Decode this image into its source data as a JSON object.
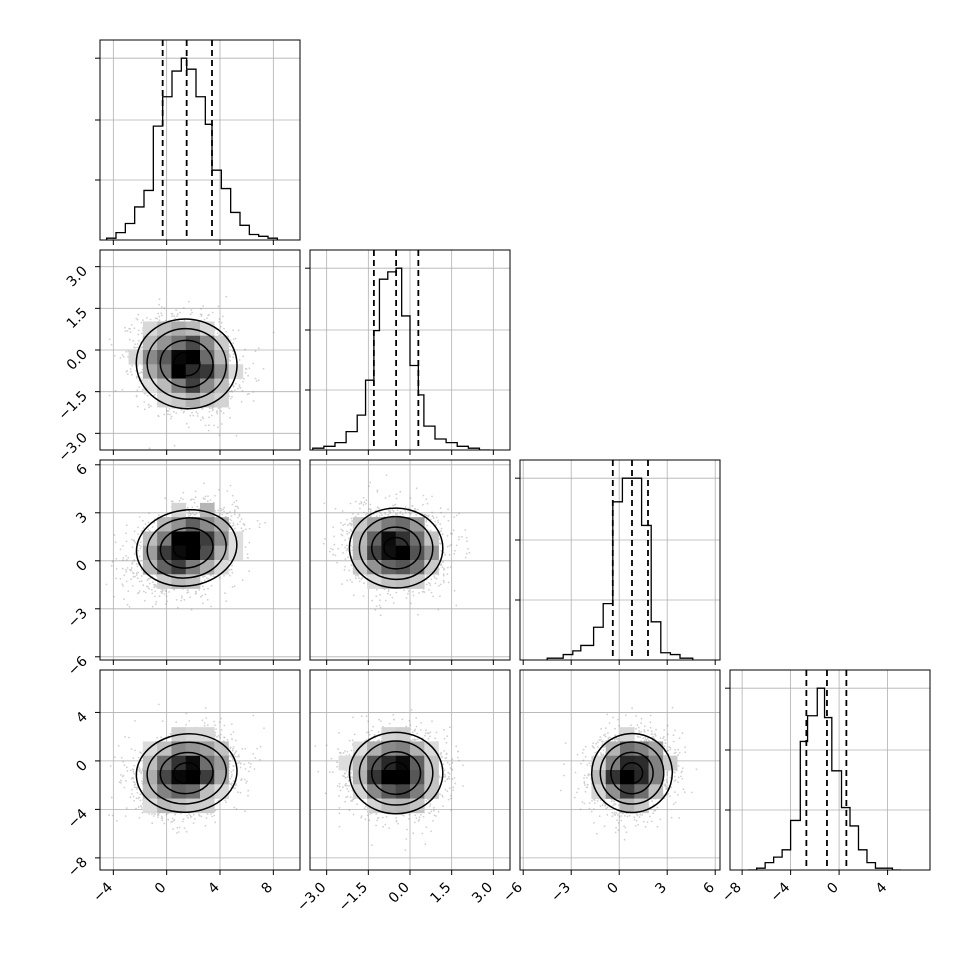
{
  "chart_data": {
    "type": "corner",
    "grid": true,
    "parameters": [
      {
        "index": 0,
        "range": [
          -5,
          10
        ],
        "ticks": [
          -4,
          0,
          4,
          8
        ],
        "tick_labels": [
          "−4",
          "0",
          "4",
          "8"
        ],
        "mean": 1.5,
        "std": 1.8,
        "quantiles": [
          -0.3,
          1.5,
          3.4
        ],
        "hist_bins": [
          -4.5,
          -3.8,
          -3.1,
          -2.4,
          -1.7,
          -1.0,
          -0.3,
          0.4,
          1.1,
          1.5,
          2.2,
          2.9,
          3.4,
          4.1,
          4.8,
          5.5,
          6.2,
          6.9,
          7.6,
          8.3
        ],
        "hist_values": [
          0.01,
          0.04,
          0.09,
          0.18,
          0.27,
          0.62,
          0.78,
          0.92,
          0.99,
          0.93,
          0.78,
          0.63,
          0.38,
          0.28,
          0.15,
          0.08,
          0.03,
          0.02,
          0.01
        ]
      },
      {
        "index": 1,
        "range": [
          -3.6,
          3.6
        ],
        "ticks": [
          -3.0,
          -1.5,
          0.0,
          1.5,
          3.0
        ],
        "tick_labels": [
          "−3.0",
          "−1.5",
          "0.0",
          "1.5",
          "3.0"
        ],
        "mean": -0.5,
        "std": 0.8,
        "quantiles": [
          -1.3,
          -0.5,
          0.3
        ],
        "hist_bins": [
          -3.5,
          -3.1,
          -2.7,
          -2.3,
          -1.9,
          -1.6,
          -1.3,
          -1.1,
          -0.8,
          -0.5,
          -0.3,
          0.0,
          0.3,
          0.5,
          0.9,
          1.3,
          1.7,
          2.1,
          2.5,
          2.9
        ],
        "hist_values": [
          0.01,
          0.02,
          0.04,
          0.1,
          0.19,
          0.38,
          0.65,
          0.93,
          0.97,
          0.99,
          0.73,
          0.46,
          0.3,
          0.13,
          0.06,
          0.04,
          0.02,
          0.01,
          0.0
        ]
      },
      {
        "index": 2,
        "range": [
          -6.2,
          6.3
        ],
        "ticks": [
          -6,
          -3,
          0,
          3,
          6
        ],
        "tick_labels": [
          "−6",
          "−3",
          "0",
          "3",
          "6"
        ],
        "mean": 0.8,
        "std": 1.2,
        "quantiles": [
          -0.4,
          0.8,
          1.8
        ],
        "hist_bins": [
          -4.5,
          -3.5,
          -2.9,
          -2.4,
          -1.6,
          -1.0,
          -0.4,
          0.2,
          0.8,
          1.4,
          2.0,
          2.6,
          3.2,
          3.8,
          4.6
        ],
        "hist_values": [
          0.01,
          0.03,
          0.05,
          0.08,
          0.18,
          0.31,
          0.87,
          1.0,
          1.0,
          0.74,
          0.21,
          0.04,
          0.03,
          0.01
        ]
      },
      {
        "index": 3,
        "range": [
          -9,
          7.5
        ],
        "ticks": [
          -8,
          -4,
          0,
          4
        ],
        "tick_labels": [
          "−8",
          "−4",
          "0",
          "4"
        ],
        "y_ticks": [
          4,
          0,
          -4,
          -8
        ],
        "y_tick_labels": [
          "4",
          "0",
          "−4",
          "−8"
        ],
        "mean": -1.0,
        "std": 1.6,
        "quantiles": [
          -2.7,
          -1.0,
          0.6
        ],
        "hist_bins": [
          -7.5,
          -6.8,
          -6.1,
          -5.4,
          -4.7,
          -4.0,
          -3.2,
          -2.6,
          -1.8,
          -1.2,
          -0.6,
          0.2,
          0.9,
          1.6,
          2.3,
          3.0,
          3.7,
          4.4,
          5.1
        ],
        "hist_values": [
          0.0,
          0.01,
          0.04,
          0.07,
          0.11,
          0.27,
          0.7,
          0.84,
          0.99,
          0.83,
          0.54,
          0.34,
          0.24,
          0.11,
          0.04,
          0.01,
          0.01,
          0.0
        ]
      }
    ],
    "correlations": [
      {
        "pair": [
          1,
          0
        ],
        "rho": -0.2
      },
      {
        "pair": [
          2,
          0
        ],
        "rho": 0.3
      },
      {
        "pair": [
          2,
          1
        ],
        "rho": -0.05
      },
      {
        "pair": [
          3,
          0
        ],
        "rho": 0.2
      },
      {
        "pair": [
          3,
          1
        ],
        "rho": 0.0
      },
      {
        "pair": [
          3,
          2
        ],
        "rho": 0.15
      }
    ]
  }
}
